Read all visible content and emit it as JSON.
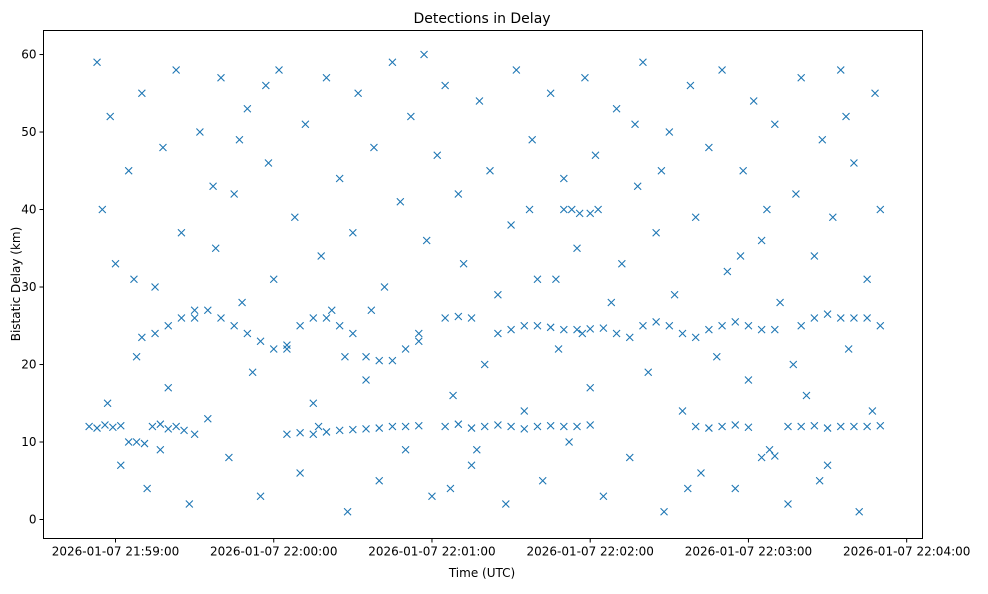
{
  "chart_data": {
    "type": "scatter",
    "title": "Detections in Delay",
    "xlabel": "Time (UTC)",
    "ylabel": "Bistatic Delay (km)",
    "x_unit": "seconds after 2026-01-07 21:58:50",
    "xlim": [
      -17.3,
      316
    ],
    "ylim": [
      -2.45,
      63.1
    ],
    "grid": false,
    "marker": "x",
    "color": "#1f77b4",
    "xticks": [
      {
        "value": 10,
        "label": "2026-01-07 21:59:00"
      },
      {
        "value": 70,
        "label": "2026-01-07 22:00:00"
      },
      {
        "value": 130,
        "label": "2026-01-07 22:01:00"
      },
      {
        "value": 190,
        "label": "2026-01-07 22:02:00"
      },
      {
        "value": 250,
        "label": "2026-01-07 22:03:00"
      },
      {
        "value": 310,
        "label": "2026-01-07 22:04:00"
      }
    ],
    "yticks": [
      {
        "value": 0,
        "label": "0"
      },
      {
        "value": 10,
        "label": "10"
      },
      {
        "value": 20,
        "label": "20"
      },
      {
        "value": 30,
        "label": "30"
      },
      {
        "value": 40,
        "label": "40"
      },
      {
        "value": 50,
        "label": "50"
      },
      {
        "value": 60,
        "label": "60"
      }
    ],
    "points": [
      [
        3,
        59
      ],
      [
        5,
        40
      ],
      [
        8,
        52
      ],
      [
        10,
        33
      ],
      [
        12,
        7
      ],
      [
        15,
        45
      ],
      [
        18,
        21
      ],
      [
        20,
        55
      ],
      [
        22,
        4
      ],
      [
        25,
        30
      ],
      [
        28,
        48
      ],
      [
        30,
        17
      ],
      [
        33,
        58
      ],
      [
        35,
        37
      ],
      [
        38,
        2
      ],
      [
        40,
        26
      ],
      [
        42,
        50
      ],
      [
        45,
        13
      ],
      [
        48,
        35
      ],
      [
        50,
        57
      ],
      [
        53,
        8
      ],
      [
        55,
        42
      ],
      [
        58,
        28
      ],
      [
        60,
        53
      ],
      [
        62,
        19
      ],
      [
        65,
        3
      ],
      [
        68,
        46
      ],
      [
        70,
        31
      ],
      [
        72,
        58
      ],
      [
        75,
        22
      ],
      [
        78,
        39
      ],
      [
        80,
        6
      ],
      [
        82,
        51
      ],
      [
        85,
        15
      ],
      [
        88,
        34
      ],
      [
        90,
        57
      ],
      [
        92,
        27
      ],
      [
        95,
        44
      ],
      [
        98,
        1
      ],
      [
        100,
        37
      ],
      [
        102,
        55
      ],
      [
        105,
        18
      ],
      [
        108,
        48
      ],
      [
        110,
        5
      ],
      [
        112,
        30
      ],
      [
        115,
        59
      ],
      [
        118,
        41
      ],
      [
        120,
        9
      ],
      [
        122,
        52
      ],
      [
        125,
        23
      ],
      [
        128,
        36
      ],
      [
        130,
        3
      ],
      [
        132,
        47
      ],
      [
        135,
        56
      ],
      [
        138,
        16
      ],
      [
        140,
        42
      ],
      [
        142,
        33
      ],
      [
        145,
        7
      ],
      [
        148,
        54
      ],
      [
        150,
        20
      ],
      [
        152,
        45
      ],
      [
        155,
        29
      ],
      [
        158,
        2
      ],
      [
        160,
        38
      ],
      [
        162,
        58
      ],
      [
        165,
        14
      ],
      [
        168,
        49
      ],
      [
        170,
        31
      ],
      [
        172,
        5
      ],
      [
        175,
        55
      ],
      [
        178,
        22
      ],
      [
        180,
        44
      ],
      [
        182,
        10
      ],
      [
        185,
        35
      ],
      [
        188,
        57
      ],
      [
        190,
        17
      ],
      [
        192,
        47
      ],
      [
        195,
        3
      ],
      [
        198,
        28
      ],
      [
        200,
        53
      ],
      [
        202,
        33
      ],
      [
        205,
        8
      ],
      [
        208,
        43
      ],
      [
        210,
        59
      ],
      [
        212,
        19
      ],
      [
        215,
        37
      ],
      [
        218,
        1
      ],
      [
        220,
        50
      ],
      [
        222,
        29
      ],
      [
        225,
        14
      ],
      [
        228,
        56
      ],
      [
        230,
        39
      ],
      [
        232,
        6
      ],
      [
        235,
        48
      ],
      [
        238,
        21
      ],
      [
        240,
        58
      ],
      [
        242,
        32
      ],
      [
        245,
        4
      ],
      [
        248,
        45
      ],
      [
        250,
        18
      ],
      [
        252,
        54
      ],
      [
        255,
        36
      ],
      [
        258,
        9
      ],
      [
        260,
        51
      ],
      [
        262,
        28
      ],
      [
        265,
        2
      ],
      [
        268,
        42
      ],
      [
        270,
        57
      ],
      [
        272,
        16
      ],
      [
        275,
        34
      ],
      [
        278,
        49
      ],
      [
        280,
        7
      ],
      [
        282,
        39
      ],
      [
        285,
        58
      ],
      [
        288,
        22
      ],
      [
        290,
        46
      ],
      [
        292,
        1
      ],
      [
        295,
        31
      ],
      [
        298,
        55
      ],
      [
        300,
        40
      ],
      [
        7,
        15
      ],
      [
        27,
        9
      ],
      [
        47,
        43
      ],
      [
        67,
        56
      ],
      [
        87,
        12
      ],
      [
        107,
        27
      ],
      [
        127,
        60
      ],
      [
        147,
        9
      ],
      [
        167,
        40
      ],
      [
        187,
        24
      ],
      [
        207,
        51
      ],
      [
        227,
        4
      ],
      [
        247,
        34
      ],
      [
        267,
        20
      ],
      [
        287,
        52
      ],
      [
        297,
        14
      ],
      [
        17,
        31
      ],
      [
        57,
        49
      ],
      [
        97,
        21
      ],
      [
        137,
        4
      ],
      [
        177,
        31
      ],
      [
        217,
        45
      ],
      [
        257,
        40
      ],
      [
        277,
        5
      ],
      [
        0,
        12
      ],
      [
        3,
        11.8
      ],
      [
        6,
        12.2
      ],
      [
        9,
        11.9
      ],
      [
        12,
        12.1
      ],
      [
        15,
        10
      ],
      [
        18,
        10
      ],
      [
        21,
        9.8
      ],
      [
        24,
        12
      ],
      [
        27,
        12.3
      ],
      [
        30,
        11.7
      ],
      [
        33,
        12
      ],
      [
        36,
        11.5
      ],
      [
        40,
        11
      ],
      [
        75,
        11
      ],
      [
        80,
        11.2
      ],
      [
        85,
        11
      ],
      [
        90,
        11.3
      ],
      [
        95,
        11.5
      ],
      [
        100,
        11.6
      ],
      [
        105,
        11.7
      ],
      [
        110,
        11.8
      ],
      [
        115,
        12
      ],
      [
        120,
        12
      ],
      [
        125,
        12.1
      ],
      [
        135,
        12
      ],
      [
        140,
        12.3
      ],
      [
        145,
        11.8
      ],
      [
        150,
        12
      ],
      [
        155,
        12.2
      ],
      [
        160,
        12
      ],
      [
        165,
        11.7
      ],
      [
        170,
        12
      ],
      [
        175,
        12.1
      ],
      [
        180,
        12
      ],
      [
        185,
        12
      ],
      [
        190,
        12.2
      ],
      [
        230,
        12
      ],
      [
        235,
        11.8
      ],
      [
        240,
        12
      ],
      [
        245,
        12.2
      ],
      [
        250,
        11.9
      ],
      [
        255,
        8
      ],
      [
        260,
        8.2
      ],
      [
        265,
        12
      ],
      [
        270,
        12
      ],
      [
        275,
        12.1
      ],
      [
        280,
        11.8
      ],
      [
        285,
        12
      ],
      [
        290,
        12
      ],
      [
        295,
        12
      ],
      [
        300,
        12.1
      ],
      [
        20,
        23.5
      ],
      [
        25,
        24
      ],
      [
        30,
        25
      ],
      [
        35,
        26
      ],
      [
        40,
        27
      ],
      [
        45,
        27
      ],
      [
        50,
        26
      ],
      [
        55,
        25
      ],
      [
        60,
        24
      ],
      [
        65,
        23
      ],
      [
        70,
        22
      ],
      [
        75,
        22.5
      ],
      [
        80,
        25
      ],
      [
        85,
        26
      ],
      [
        90,
        26
      ],
      [
        95,
        25
      ],
      [
        100,
        24
      ],
      [
        105,
        21
      ],
      [
        110,
        20.5
      ],
      [
        115,
        20.5
      ],
      [
        120,
        22
      ],
      [
        125,
        24
      ],
      [
        135,
        26
      ],
      [
        140,
        26.2
      ],
      [
        145,
        26
      ],
      [
        155,
        24
      ],
      [
        160,
        24.5
      ],
      [
        165,
        25
      ],
      [
        170,
        25
      ],
      [
        175,
        24.8
      ],
      [
        180,
        24.5
      ],
      [
        185,
        24.5
      ],
      [
        190,
        24.6
      ],
      [
        195,
        24.7
      ],
      [
        200,
        24
      ],
      [
        205,
        23.5
      ],
      [
        210,
        25
      ],
      [
        215,
        25.5
      ],
      [
        220,
        25
      ],
      [
        225,
        24
      ],
      [
        230,
        23.5
      ],
      [
        235,
        24.5
      ],
      [
        240,
        25
      ],
      [
        245,
        25.5
      ],
      [
        250,
        25
      ],
      [
        255,
        24.5
      ],
      [
        260,
        24.5
      ],
      [
        270,
        25
      ],
      [
        275,
        26
      ],
      [
        280,
        26.5
      ],
      [
        285,
        26
      ],
      [
        290,
        26
      ],
      [
        295,
        26
      ],
      [
        300,
        25
      ],
      [
        180,
        40
      ],
      [
        183,
        40
      ],
      [
        186,
        39.5
      ],
      [
        190,
        39.5
      ],
      [
        193,
        40
      ]
    ]
  }
}
